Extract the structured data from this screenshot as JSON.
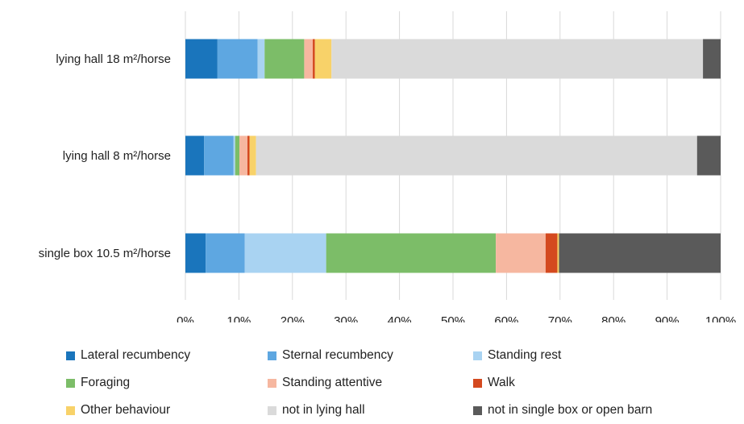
{
  "chart_data": {
    "type": "bar",
    "orientation": "horizontal",
    "stacked": "percent",
    "categories": [
      "lying hall 18 m²/horse",
      "lying hall 8 m²/horse",
      "single box 10.5 m²/horse"
    ],
    "xlim": [
      0,
      100
    ],
    "ticks": [
      "0%",
      "10%",
      "20%",
      "30%",
      "40%",
      "50%",
      "60%",
      "70%",
      "80%",
      "90%",
      "100%"
    ],
    "grid": "vertical",
    "legend_position": "bottom",
    "series": [
      {
        "name": "Lateral recumbency",
        "color": "#1a75bc",
        "values": [
          6.0,
          3.5,
          3.8
        ]
      },
      {
        "name": "Sternal recumbency",
        "color": "#5ea7e1",
        "values": [
          7.5,
          5.5,
          7.3
        ]
      },
      {
        "name": "Standing rest",
        "color": "#a9d3f2",
        "values": [
          1.3,
          0.3,
          15.2
        ]
      },
      {
        "name": "Foraging",
        "color": "#7cbd68",
        "values": [
          7.4,
          0.8,
          31.7
        ]
      },
      {
        "name": "Standing attentive",
        "color": "#f6b7a0",
        "values": [
          1.6,
          1.5,
          9.3
        ]
      },
      {
        "name": "Walk",
        "color": "#d4491f",
        "values": [
          0.4,
          0.4,
          2.2
        ]
      },
      {
        "name": "Other behaviour",
        "color": "#f8d269",
        "values": [
          3.1,
          1.2,
          0.3
        ]
      },
      {
        "name": "not in lying hall",
        "color": "#dadada",
        "values": [
          69.4,
          82.4,
          0.0
        ]
      },
      {
        "name": "not in single box or open barn",
        "color": "#5a5a5a",
        "values": [
          3.3,
          4.4,
          30.2
        ]
      }
    ]
  }
}
